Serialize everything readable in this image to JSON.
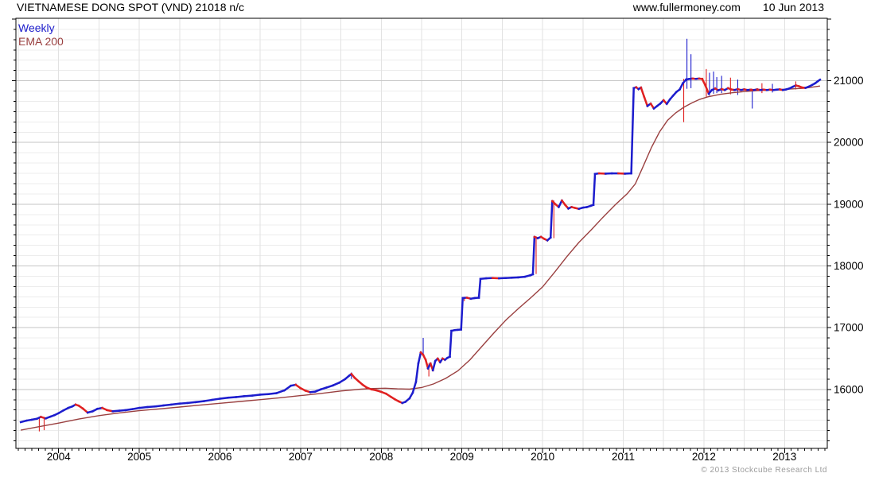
{
  "header": {
    "title": "VIETNAMESE DONG SPOT (VND) 21018 n/c",
    "site": "www.fullermoney.com",
    "date": "10 Jun 2013"
  },
  "legend": {
    "weekly": "Weekly",
    "ema": "EMA 200"
  },
  "footer": {
    "copyright": "© 2013 Stockcube Research Ltd"
  },
  "colors": {
    "price_up": "#1c1ccd",
    "price_down": "#e02020",
    "ema": "#9a4040",
    "legend_weekly": "#2020cc",
    "legend_ema": "#9a4040",
    "grid_minor": "#ececec",
    "grid_vertical": "#e2e2e2",
    "grid_major": "#c6c6c6",
    "axis": "#000000",
    "copyright": "#9b9b9b"
  },
  "chart_data": {
    "type": "line",
    "title": "VIETNAMESE DONG SPOT (VND)",
    "last_price": 21018,
    "change": "n/c",
    "frequency": "Weekly",
    "overlay": "EMA 200",
    "x_axis": {
      "ticks": [
        2004,
        2005,
        2006,
        2007,
        2008,
        2009,
        2010,
        2011,
        2012,
        2013
      ],
      "range": [
        2003.47,
        2013.53
      ],
      "gridline_interval": 0.5,
      "minor_tick_interval_years": 0.0833
    },
    "y_axis": {
      "ticks": [
        16000,
        17000,
        18000,
        19000,
        20000,
        21000
      ],
      "range": [
        15045,
        22012
      ],
      "minor_per_major": 6
    },
    "price": [
      [
        2003.53,
        15470
      ],
      [
        2003.6,
        15495
      ],
      [
        2003.67,
        15510
      ],
      [
        2003.73,
        15525
      ],
      [
        2003.78,
        15555
      ],
      [
        2003.84,
        15530
      ],
      [
        2003.9,
        15560
      ],
      [
        2003.95,
        15585
      ],
      [
        2004.0,
        15615
      ],
      [
        2004.06,
        15660
      ],
      [
        2004.12,
        15700
      ],
      [
        2004.17,
        15725
      ],
      [
        2004.21,
        15755
      ],
      [
        2004.25,
        15735
      ],
      [
        2004.3,
        15690
      ],
      [
        2004.36,
        15625
      ],
      [
        2004.42,
        15645
      ],
      [
        2004.48,
        15685
      ],
      [
        2004.54,
        15700
      ],
      [
        2004.6,
        15665
      ],
      [
        2004.67,
        15645
      ],
      [
        2004.75,
        15655
      ],
      [
        2004.83,
        15665
      ],
      [
        2004.91,
        15680
      ],
      [
        2005.0,
        15700
      ],
      [
        2005.1,
        15715
      ],
      [
        2005.2,
        15725
      ],
      [
        2005.3,
        15740
      ],
      [
        2005.4,
        15755
      ],
      [
        2005.5,
        15770
      ],
      [
        2005.6,
        15780
      ],
      [
        2005.7,
        15795
      ],
      [
        2005.8,
        15810
      ],
      [
        2005.9,
        15830
      ],
      [
        2006.0,
        15850
      ],
      [
        2006.1,
        15865
      ],
      [
        2006.2,
        15875
      ],
      [
        2006.3,
        15890
      ],
      [
        2006.4,
        15900
      ],
      [
        2006.5,
        15915
      ],
      [
        2006.6,
        15925
      ],
      [
        2006.7,
        15940
      ],
      [
        2006.8,
        15985
      ],
      [
        2006.88,
        16060
      ],
      [
        2006.94,
        16075
      ],
      [
        2007.0,
        16020
      ],
      [
        2007.06,
        15980
      ],
      [
        2007.12,
        15955
      ],
      [
        2007.18,
        15965
      ],
      [
        2007.25,
        16000
      ],
      [
        2007.32,
        16030
      ],
      [
        2007.4,
        16065
      ],
      [
        2007.48,
        16110
      ],
      [
        2007.55,
        16165
      ],
      [
        2007.6,
        16220
      ],
      [
        2007.63,
        16250
      ],
      [
        2007.67,
        16190
      ],
      [
        2007.72,
        16130
      ],
      [
        2007.77,
        16075
      ],
      [
        2007.82,
        16030
      ],
      [
        2007.88,
        16000
      ],
      [
        2007.94,
        15985
      ],
      [
        2008.0,
        15960
      ],
      [
        2008.06,
        15930
      ],
      [
        2008.12,
        15880
      ],
      [
        2008.17,
        15840
      ],
      [
        2008.22,
        15805
      ],
      [
        2008.26,
        15780
      ],
      [
        2008.3,
        15800
      ],
      [
        2008.35,
        15855
      ],
      [
        2008.39,
        15945
      ],
      [
        2008.43,
        16120
      ],
      [
        2008.46,
        16420
      ],
      [
        2008.49,
        16600
      ],
      [
        2008.52,
        16560
      ],
      [
        2008.55,
        16480
      ],
      [
        2008.58,
        16340
      ],
      [
        2008.61,
        16420
      ],
      [
        2008.64,
        16310
      ],
      [
        2008.67,
        16460
      ],
      [
        2008.7,
        16500
      ],
      [
        2008.73,
        16440
      ],
      [
        2008.76,
        16500
      ],
      [
        2008.79,
        16480
      ],
      [
        2008.82,
        16510
      ],
      [
        2008.85,
        16530
      ],
      [
        2008.87,
        16950
      ],
      [
        2008.91,
        16960
      ],
      [
        2008.95,
        16965
      ],
      [
        2008.99,
        16970
      ],
      [
        2009.01,
        17480
      ],
      [
        2009.06,
        17485
      ],
      [
        2009.11,
        17470
      ],
      [
        2009.16,
        17480
      ],
      [
        2009.21,
        17485
      ],
      [
        2009.23,
        17790
      ],
      [
        2009.3,
        17800
      ],
      [
        2009.38,
        17805
      ],
      [
        2009.46,
        17800
      ],
      [
        2009.54,
        17805
      ],
      [
        2009.62,
        17810
      ],
      [
        2009.7,
        17815
      ],
      [
        2009.78,
        17825
      ],
      [
        2009.85,
        17850
      ],
      [
        2009.88,
        17865
      ],
      [
        2009.9,
        18470
      ],
      [
        2009.94,
        18450
      ],
      [
        2009.98,
        18470
      ],
      [
        2010.02,
        18440
      ],
      [
        2010.06,
        18415
      ],
      [
        2010.1,
        18460
      ],
      [
        2010.12,
        19050
      ],
      [
        2010.16,
        19000
      ],
      [
        2010.2,
        18955
      ],
      [
        2010.24,
        19060
      ],
      [
        2010.28,
        18990
      ],
      [
        2010.32,
        18930
      ],
      [
        2010.36,
        18955
      ],
      [
        2010.4,
        18940
      ],
      [
        2010.45,
        18925
      ],
      [
        2010.5,
        18945
      ],
      [
        2010.55,
        18955
      ],
      [
        2010.6,
        18975
      ],
      [
        2010.63,
        18990
      ],
      [
        2010.65,
        19490
      ],
      [
        2010.7,
        19500
      ],
      [
        2010.78,
        19495
      ],
      [
        2010.86,
        19500
      ],
      [
        2010.94,
        19500
      ],
      [
        2011.02,
        19495
      ],
      [
        2011.1,
        19500
      ],
      [
        2011.13,
        20880
      ],
      [
        2011.16,
        20895
      ],
      [
        2011.19,
        20865
      ],
      [
        2011.22,
        20890
      ],
      [
        2011.26,
        20740
      ],
      [
        2011.3,
        20590
      ],
      [
        2011.34,
        20630
      ],
      [
        2011.38,
        20550
      ],
      [
        2011.42,
        20590
      ],
      [
        2011.46,
        20630
      ],
      [
        2011.5,
        20685
      ],
      [
        2011.54,
        20625
      ],
      [
        2011.58,
        20700
      ],
      [
        2011.62,
        20760
      ],
      [
        2011.66,
        20820
      ],
      [
        2011.7,
        20860
      ],
      [
        2011.74,
        20960
      ],
      [
        2011.78,
        21020
      ],
      [
        2011.82,
        21030
      ],
      [
        2011.86,
        21035
      ],
      [
        2011.9,
        21030
      ],
      [
        2011.94,
        21035
      ],
      [
        2011.98,
        21030
      ],
      [
        2012.02,
        20920
      ],
      [
        2012.06,
        20790
      ],
      [
        2012.1,
        20850
      ],
      [
        2012.14,
        20875
      ],
      [
        2012.18,
        20845
      ],
      [
        2012.22,
        20865
      ],
      [
        2012.26,
        20850
      ],
      [
        2012.3,
        20880
      ],
      [
        2012.34,
        20860
      ],
      [
        2012.38,
        20850
      ],
      [
        2012.42,
        20865
      ],
      [
        2012.46,
        20850
      ],
      [
        2012.5,
        20860
      ],
      [
        2012.54,
        20850
      ],
      [
        2012.58,
        20855
      ],
      [
        2012.62,
        20850
      ],
      [
        2012.66,
        20860
      ],
      [
        2012.7,
        20850
      ],
      [
        2012.74,
        20855
      ],
      [
        2012.78,
        20850
      ],
      [
        2012.82,
        20855
      ],
      [
        2012.86,
        20850
      ],
      [
        2012.9,
        20855
      ],
      [
        2012.94,
        20860
      ],
      [
        2012.98,
        20850
      ],
      [
        2013.02,
        20860
      ],
      [
        2013.06,
        20875
      ],
      [
        2013.1,
        20900
      ],
      [
        2013.14,
        20925
      ],
      [
        2013.18,
        20910
      ],
      [
        2013.22,
        20890
      ],
      [
        2013.26,
        20885
      ],
      [
        2013.3,
        20905
      ],
      [
        2013.34,
        20930
      ],
      [
        2013.38,
        20960
      ],
      [
        2013.41,
        20990
      ],
      [
        2013.44,
        21018
      ]
    ],
    "ema": [
      [
        2003.53,
        15340
      ],
      [
        2003.75,
        15395
      ],
      [
        2004.0,
        15455
      ],
      [
        2004.25,
        15520
      ],
      [
        2004.5,
        15575
      ],
      [
        2004.75,
        15620
      ],
      [
        2005.0,
        15655
      ],
      [
        2005.25,
        15685
      ],
      [
        2005.5,
        15715
      ],
      [
        2005.75,
        15745
      ],
      [
        2006.0,
        15775
      ],
      [
        2006.25,
        15805
      ],
      [
        2006.5,
        15835
      ],
      [
        2006.75,
        15865
      ],
      [
        2007.0,
        15900
      ],
      [
        2007.25,
        15935
      ],
      [
        2007.5,
        15975
      ],
      [
        2007.75,
        16005
      ],
      [
        2007.9,
        16015
      ],
      [
        2008.05,
        16020
      ],
      [
        2008.2,
        16010
      ],
      [
        2008.35,
        16005
      ],
      [
        2008.5,
        16030
      ],
      [
        2008.65,
        16090
      ],
      [
        2008.8,
        16180
      ],
      [
        2008.95,
        16300
      ],
      [
        2009.1,
        16480
      ],
      [
        2009.25,
        16700
      ],
      [
        2009.4,
        16920
      ],
      [
        2009.55,
        17130
      ],
      [
        2009.7,
        17310
      ],
      [
        2009.85,
        17480
      ],
      [
        2010.0,
        17660
      ],
      [
        2010.15,
        17900
      ],
      [
        2010.3,
        18150
      ],
      [
        2010.45,
        18380
      ],
      [
        2010.6,
        18580
      ],
      [
        2010.75,
        18790
      ],
      [
        2010.9,
        18990
      ],
      [
        2011.05,
        19170
      ],
      [
        2011.15,
        19330
      ],
      [
        2011.25,
        19620
      ],
      [
        2011.35,
        19920
      ],
      [
        2011.45,
        20170
      ],
      [
        2011.55,
        20360
      ],
      [
        2011.65,
        20480
      ],
      [
        2011.75,
        20570
      ],
      [
        2011.85,
        20640
      ],
      [
        2011.95,
        20700
      ],
      [
        2012.05,
        20740
      ],
      [
        2012.2,
        20780
      ],
      [
        2012.35,
        20805
      ],
      [
        2012.5,
        20825
      ],
      [
        2012.65,
        20840
      ],
      [
        2012.8,
        20850
      ],
      [
        2012.95,
        20858
      ],
      [
        2013.1,
        20868
      ],
      [
        2013.25,
        20880
      ],
      [
        2013.44,
        20915
      ]
    ],
    "wicks": [
      {
        "t": 2003.76,
        "lo": 15320,
        "hi": 15560,
        "c": "down"
      },
      {
        "t": 2003.82,
        "lo": 15340,
        "hi": 15555,
        "c": "down"
      },
      {
        "t": 2007.63,
        "lo": 16170,
        "hi": 16275,
        "c": "up"
      },
      {
        "t": 2008.52,
        "lo": 16550,
        "hi": 16835,
        "c": "up"
      },
      {
        "t": 2008.59,
        "lo": 16210,
        "hi": 16420,
        "c": "down"
      },
      {
        "t": 2009.03,
        "lo": 17430,
        "hi": 17500,
        "c": "down"
      },
      {
        "t": 2009.92,
        "lo": 17870,
        "hi": 18480,
        "c": "down"
      },
      {
        "t": 2010.14,
        "lo": 18450,
        "hi": 19060,
        "c": "down"
      },
      {
        "t": 2011.75,
        "lo": 20330,
        "hi": 21030,
        "c": "down"
      },
      {
        "t": 2011.79,
        "lo": 20870,
        "hi": 21680,
        "c": "up"
      },
      {
        "t": 2011.84,
        "lo": 20880,
        "hi": 21430,
        "c": "up"
      },
      {
        "t": 2012.03,
        "lo": 20740,
        "hi": 21190,
        "c": "down"
      },
      {
        "t": 2012.07,
        "lo": 20760,
        "hi": 21130,
        "c": "up"
      },
      {
        "t": 2012.12,
        "lo": 20790,
        "hi": 21150,
        "c": "up"
      },
      {
        "t": 2012.16,
        "lo": 20800,
        "hi": 21060,
        "c": "up"
      },
      {
        "t": 2012.22,
        "lo": 20800,
        "hi": 21080,
        "c": "up"
      },
      {
        "t": 2012.33,
        "lo": 20780,
        "hi": 21050,
        "c": "down"
      },
      {
        "t": 2012.42,
        "lo": 20770,
        "hi": 21020,
        "c": "up"
      },
      {
        "t": 2012.6,
        "lo": 20550,
        "hi": 20860,
        "c": "up"
      },
      {
        "t": 2012.72,
        "lo": 20800,
        "hi": 20960,
        "c": "down"
      },
      {
        "t": 2012.85,
        "lo": 20810,
        "hi": 20950,
        "c": "up"
      },
      {
        "t": 2013.14,
        "lo": 20860,
        "hi": 20990,
        "c": "down"
      }
    ]
  }
}
